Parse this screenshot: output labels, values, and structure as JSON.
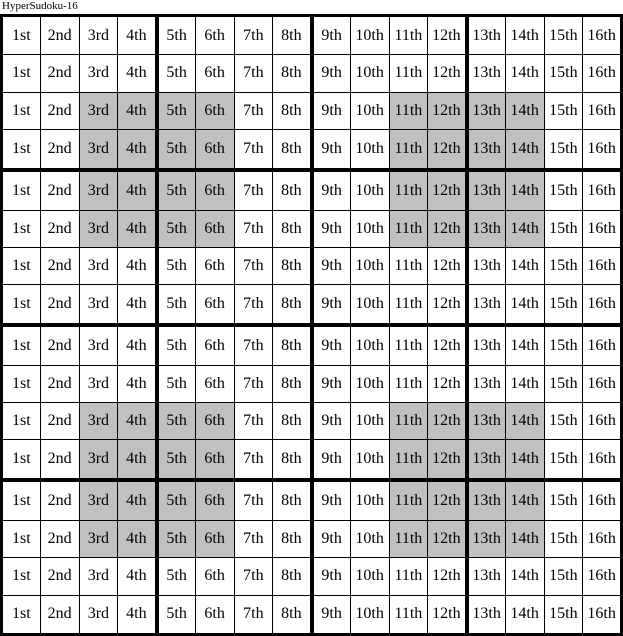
{
  "title": "HyperSudoku-16",
  "grid": {
    "rows": 16,
    "cols": 16,
    "block_size": 4,
    "column_labels": [
      "1st",
      "2nd",
      "3rd",
      "4th",
      "5th",
      "6th",
      "7th",
      "8th",
      "9th",
      "10th",
      "11th",
      "12th",
      "13th",
      "14th",
      "15th",
      "16th"
    ],
    "shaded_rows": [
      3,
      4,
      5,
      6,
      11,
      12,
      13,
      14
    ],
    "shaded_cols": [
      3,
      4,
      5,
      6,
      11,
      12,
      13,
      14
    ],
    "colors": {
      "shaded_cell": "#c0c0c0",
      "cell_background": "#ffffff",
      "grid_line": "#000000",
      "text": "#000000"
    }
  }
}
